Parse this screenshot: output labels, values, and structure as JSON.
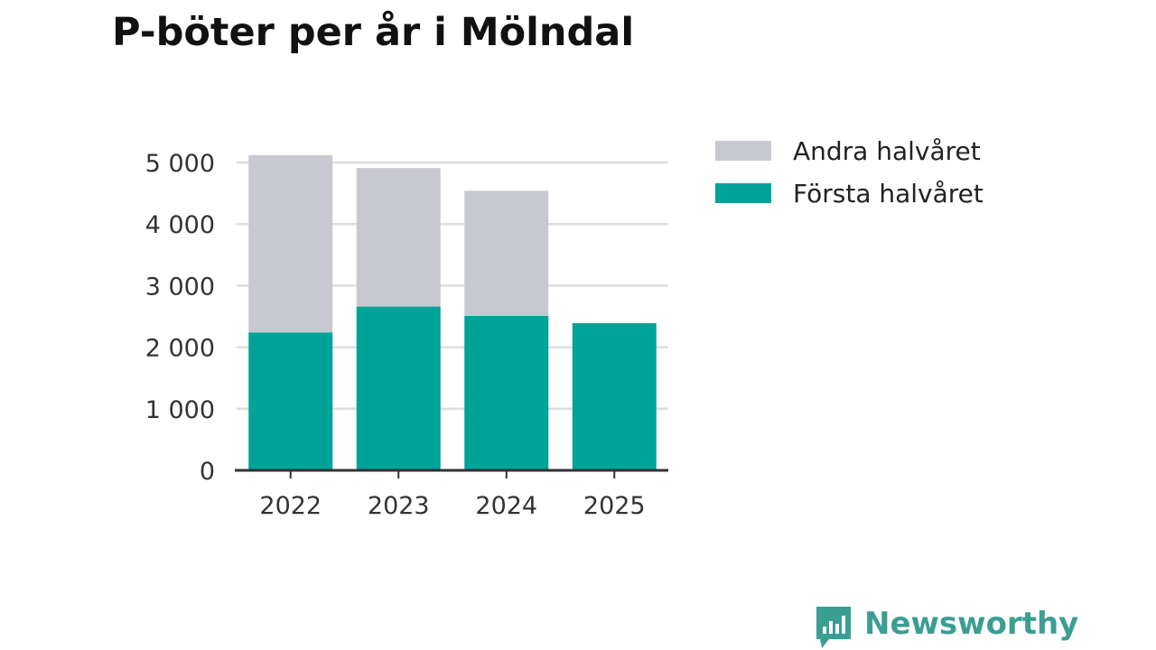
{
  "chart_data": {
    "type": "bar",
    "stacked": true,
    "title": "P-böter per år i Mölndal",
    "xlabel": "",
    "ylabel": "",
    "ylim": [
      0,
      5000
    ],
    "yticks": [
      0,
      1000,
      2000,
      3000,
      4000,
      5000
    ],
    "ytick_labels": [
      "0",
      "1 000",
      "2 000",
      "3 000",
      "4 000",
      "5 000"
    ],
    "categories": [
      "2022",
      "2023",
      "2024",
      "2025"
    ],
    "series": [
      {
        "name": "Första halvåret",
        "color": "#00a398",
        "values": [
          2240,
          2660,
          2510,
          2390
        ]
      },
      {
        "name": "Andra halvåret",
        "color": "#c8c8d0",
        "values": [
          2880,
          2250,
          2030,
          0
        ]
      }
    ],
    "legend_position": "right"
  },
  "legend": {
    "items": [
      {
        "label": "Andra halvåret",
        "color": "#c8c8d0"
      },
      {
        "label": "Första halvåret",
        "color": "#00a398"
      }
    ]
  },
  "brand": {
    "name": "Newsworthy",
    "color": "#3b9e93",
    "icon": "bar-chart-speech-bubble-icon"
  },
  "colors": {
    "grid": "#dddddd",
    "axis": "#333333"
  }
}
